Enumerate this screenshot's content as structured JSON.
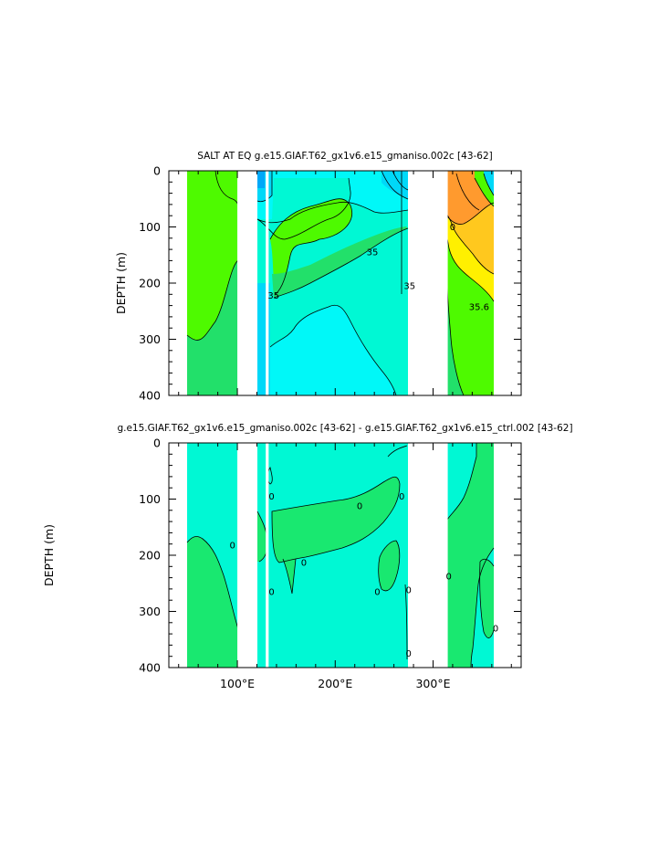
{
  "chart_data": [
    {
      "type": "heatmap",
      "title": "SALT AT EQ g.e15.GIAF.T62_gx1v6.e15_gmaniso.002c [43-62]",
      "ylabel": "DEPTH (m)",
      "xlabel": "",
      "xlim": [
        30,
        390
      ],
      "ylim": [
        400,
        0
      ],
      "x_ticks": [],
      "y_ticks": [
        "0",
        "100",
        "200",
        "300",
        "400"
      ],
      "y_tick_values": [
        0,
        100,
        200,
        300,
        400
      ],
      "land_gaps_lon": [
        [
          100,
          112
        ],
        [
          129,
          132
        ],
        [
          278,
          315
        ]
      ],
      "ocean_spans_lon": [
        [
          44,
          100
        ],
        [
          112,
          278
        ],
        [
          315,
          369
        ]
      ],
      "contour_labels": [
        {
          "text": "35",
          "lon": 238,
          "depth": 145
        },
        {
          "text": "35",
          "lon": 276,
          "depth": 205
        },
        {
          "text": "35",
          "lon": 137,
          "depth": 222
        },
        {
          "text": "35.6",
          "lon": 347,
          "depth": 242
        },
        {
          "text": "0",
          "lon": 320,
          "depth": 100
        }
      ],
      "colors": {
        "green": "#4efa00",
        "mid_green": "#22e06a",
        "aqua": "#00f8d4",
        "cyan": "#00f8f8",
        "light_blue": "#00d8f8",
        "blue": "#00a8f8",
        "orange": "#ff9a2e",
        "gold": "#ffc81e",
        "yellow": "#fff000"
      }
    },
    {
      "type": "heatmap",
      "title": "g.e15.GIAF.T62_gx1v6.e15_gmaniso.002c [43-62] - g.e15.GIAF.T62_gx1v6.e15_ctrl.002 [43-62]",
      "ylabel": "DEPTH (m)",
      "xlabel": "",
      "xlim": [
        30,
        390
      ],
      "ylim": [
        400,
        0
      ],
      "x_ticks": [
        "100°E",
        "200°E",
        "300°E"
      ],
      "x_tick_values": [
        100,
        200,
        300
      ],
      "y_ticks": [
        "0",
        "100",
        "200",
        "300",
        "400"
      ],
      "y_tick_values": [
        0,
        100,
        200,
        300,
        400
      ],
      "land_gaps_lon": [
        [
          100,
          112
        ],
        [
          129,
          132
        ],
        [
          278,
          315
        ]
      ],
      "ocean_spans_lon": [
        [
          44,
          100
        ],
        [
          112,
          278
        ],
        [
          315,
          369
        ]
      ],
      "contour_labels": [
        {
          "text": "0",
          "lon": 135,
          "depth": 95
        },
        {
          "text": "0",
          "lon": 225,
          "depth": 112
        },
        {
          "text": "0",
          "lon": 268,
          "depth": 95
        },
        {
          "text": "0",
          "lon": 95,
          "depth": 182
        },
        {
          "text": "0",
          "lon": 168,
          "depth": 213
        },
        {
          "text": "0",
          "lon": 135,
          "depth": 265
        },
        {
          "text": "0",
          "lon": 243,
          "depth": 265
        },
        {
          "text": "0",
          "lon": 275,
          "depth": 262
        },
        {
          "text": "0",
          "lon": 316,
          "depth": 237
        },
        {
          "text": "0",
          "lon": 364,
          "depth": 330
        },
        {
          "text": "0",
          "lon": 275,
          "depth": 375
        }
      ],
      "colors": {
        "green": "#19e870",
        "aqua": "#00f8d4"
      }
    }
  ]
}
